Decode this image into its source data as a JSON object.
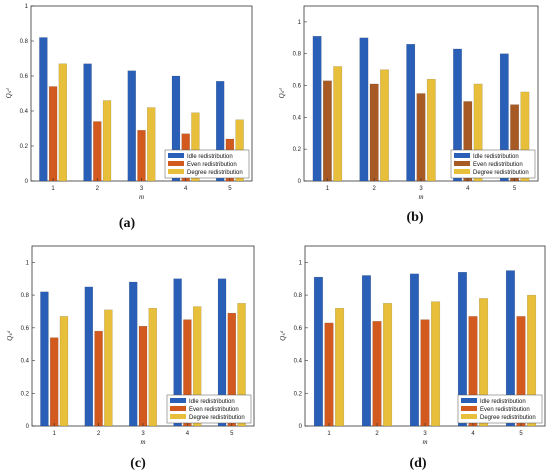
{
  "chart_data": [
    {
      "panel_label": "(a)",
      "type": "bar",
      "categories": [
        "1",
        "2",
        "3",
        "4",
        "5"
      ],
      "xlabel": "m",
      "ylabel": "Qₛᵈ",
      "ylim": [
        0,
        1
      ],
      "yticks": [
        "0",
        "0.2",
        "0.4",
        "0.6",
        "0.8",
        "1"
      ],
      "grid": false,
      "legend_position": "bottom-right",
      "series": [
        {
          "name": "Idle redistribution",
          "color": "#2a5fb8",
          "values": [
            0.82,
            0.67,
            0.63,
            0.6,
            0.57
          ]
        },
        {
          "name": "Even redistribution",
          "color": "#d25a1e",
          "values": [
            0.54,
            0.34,
            0.29,
            0.27,
            0.24
          ]
        },
        {
          "name": "Degree redistribution",
          "color": "#e8bf3a",
          "values": [
            0.67,
            0.46,
            0.42,
            0.39,
            0.35
          ]
        }
      ]
    },
    {
      "panel_label": "(b)",
      "type": "bar",
      "categories": [
        "1",
        "2",
        "3",
        "4",
        "5"
      ],
      "xlabel": "m",
      "ylabel": "Qₛᵈ",
      "ylim": [
        0,
        1.1
      ],
      "yticks": [
        "0",
        "0.2",
        "0.4",
        "0.6",
        "0.8",
        "1"
      ],
      "grid": false,
      "legend_position": "bottom-right",
      "series": [
        {
          "name": "Idle redistribution",
          "color": "#2a5fb8",
          "values": [
            0.91,
            0.9,
            0.86,
            0.83,
            0.8
          ]
        },
        {
          "name": "Even redistribution",
          "color": "#a85a24",
          "values": [
            0.63,
            0.61,
            0.55,
            0.5,
            0.48
          ]
        },
        {
          "name": "Degree redistribution",
          "color": "#e8bf3a",
          "values": [
            0.72,
            0.7,
            0.64,
            0.61,
            0.56
          ]
        }
      ]
    },
    {
      "panel_label": "(c)",
      "type": "bar",
      "categories": [
        "1",
        "2",
        "3",
        "4",
        "5"
      ],
      "xlabel": "m",
      "ylabel": "Qₛᵈ",
      "ylim": [
        0,
        1.1
      ],
      "yticks": [
        "0",
        "0.2",
        "0.4",
        "0.6",
        "0.8",
        "1"
      ],
      "grid": false,
      "legend_position": "bottom-right",
      "series": [
        {
          "name": "Idle redistribution",
          "color": "#2a5fb8",
          "values": [
            0.82,
            0.85,
            0.88,
            0.9,
            0.9
          ]
        },
        {
          "name": "Even redistribution",
          "color": "#d25a1e",
          "values": [
            0.54,
            0.58,
            0.61,
            0.65,
            0.69
          ]
        },
        {
          "name": "Degree redistribution",
          "color": "#e8bf3a",
          "values": [
            0.67,
            0.71,
            0.72,
            0.73,
            0.75
          ]
        }
      ]
    },
    {
      "panel_label": "(d)",
      "type": "bar",
      "categories": [
        "1",
        "2",
        "3",
        "4",
        "5"
      ],
      "xlabel": "m",
      "ylabel": "Qₛᵈ",
      "ylim": [
        0,
        1.1
      ],
      "yticks": [
        "0",
        "0.2",
        "0.4",
        "0.6",
        "0.8",
        "1"
      ],
      "grid": false,
      "legend_position": "bottom-right",
      "series": [
        {
          "name": "Idle redistribution",
          "color": "#2a5fb8",
          "values": [
            0.91,
            0.92,
            0.93,
            0.94,
            0.95
          ]
        },
        {
          "name": "Even redistribution",
          "color": "#d25a1e",
          "values": [
            0.63,
            0.64,
            0.65,
            0.67,
            0.67
          ]
        },
        {
          "name": "Degree redistribution",
          "color": "#e8bf3a",
          "values": [
            0.72,
            0.75,
            0.76,
            0.78,
            0.8
          ]
        }
      ]
    }
  ]
}
